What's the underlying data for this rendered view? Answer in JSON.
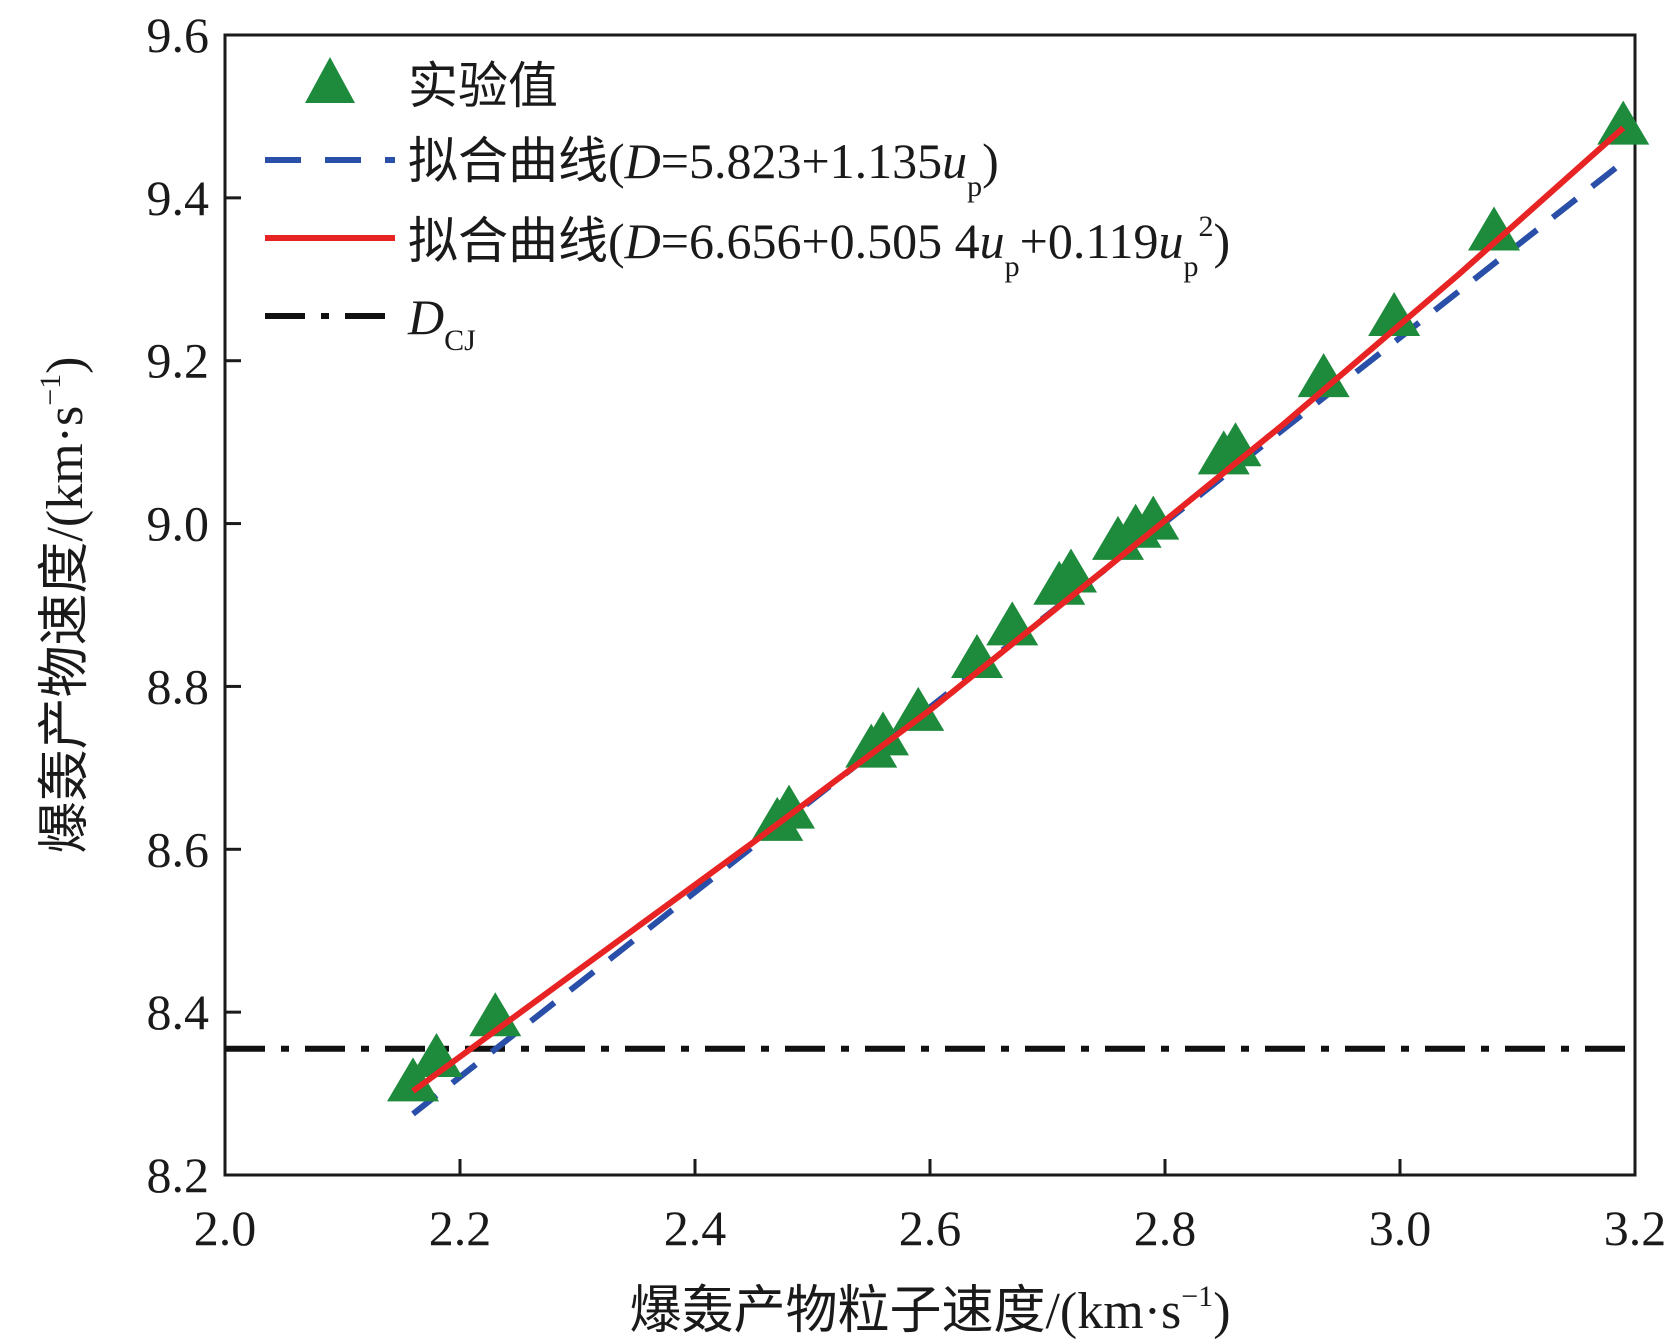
{
  "chart_data": {
    "type": "scatter",
    "xlabel": "爆轰产物粒子速度/(km·s⁻¹)",
    "ylabel": "爆轰产物速度/(km·s⁻¹)",
    "xlim": [
      2.0,
      3.2
    ],
    "ylim": [
      8.2,
      9.6
    ],
    "x_ticks": [
      "2.0",
      "2.2",
      "2.4",
      "2.6",
      "2.8",
      "3.0",
      "3.2"
    ],
    "y_ticks": [
      "8.2",
      "8.4",
      "8.6",
      "8.8",
      "9.0",
      "9.2",
      "9.4",
      "9.6"
    ],
    "grid": false,
    "legend_position": "top-left",
    "series": [
      {
        "name": "实验值",
        "kind": "scatter",
        "marker": "triangle",
        "color": "#1e8a3c",
        "x": [
          2.16,
          2.18,
          2.23,
          2.47,
          2.48,
          2.55,
          2.56,
          2.59,
          2.64,
          2.67,
          2.71,
          2.72,
          2.76,
          2.775,
          2.79,
          2.85,
          2.86,
          2.935,
          2.995,
          3.08,
          3.19
        ],
        "y": [
          8.31,
          8.34,
          8.39,
          8.63,
          8.645,
          8.72,
          8.735,
          8.765,
          8.83,
          8.87,
          8.92,
          8.935,
          8.975,
          8.99,
          9.0,
          9.08,
          9.09,
          9.175,
          9.25,
          9.355,
          9.485
        ]
      },
      {
        "name": "拟合曲线(D=5.823+1.135up)",
        "kind": "line",
        "style": "dashed",
        "color": "#2a4fa8",
        "equation": "D=5.823+1.135up",
        "x": [
          2.16,
          3.19
        ],
        "y": [
          8.275,
          9.444
        ]
      },
      {
        "name": "拟合曲线(D=6.656+0.505 4up+0.119up²)",
        "kind": "line",
        "style": "solid",
        "color": "#e82323",
        "equation": "D=6.656+0.505 4up+0.119up²",
        "x": [
          2.16,
          2.3,
          2.45,
          2.6,
          2.75,
          2.9,
          3.05,
          3.19
        ],
        "y": [
          8.303,
          8.451,
          8.609,
          8.771,
          8.945,
          9.121,
          9.306,
          9.486
        ]
      },
      {
        "name": "DCJ",
        "kind": "hline",
        "style": "dash-dot",
        "color": "#111111",
        "y": 8.355
      }
    ],
    "legend": [
      {
        "main": "实验值"
      },
      {
        "prefix": "拟合曲线(",
        "D": "D",
        "eq": "=5.823+1.135",
        "u": "u",
        "sub": "p",
        "close": ")"
      },
      {
        "prefix": "拟合曲线(",
        "D": "D",
        "eq": "=6.656+0.505 4",
        "u": "u",
        "sub": "p",
        "mid": "+0.119",
        "u2": "u",
        "sub2": "p",
        "sup2": "2",
        "close": ")"
      },
      {
        "D": "D",
        "sub": "CJ"
      }
    ],
    "axis_title_parts": {
      "x": {
        "text": "爆轰产物粒子速度/(km",
        "dot": "·",
        "s": "s",
        "sup": "−1",
        "close": ")"
      },
      "y": {
        "text": "爆轰产物速度/(km",
        "dot": "·",
        "s": "s",
        "sup": "−1",
        "close": ")"
      }
    }
  }
}
